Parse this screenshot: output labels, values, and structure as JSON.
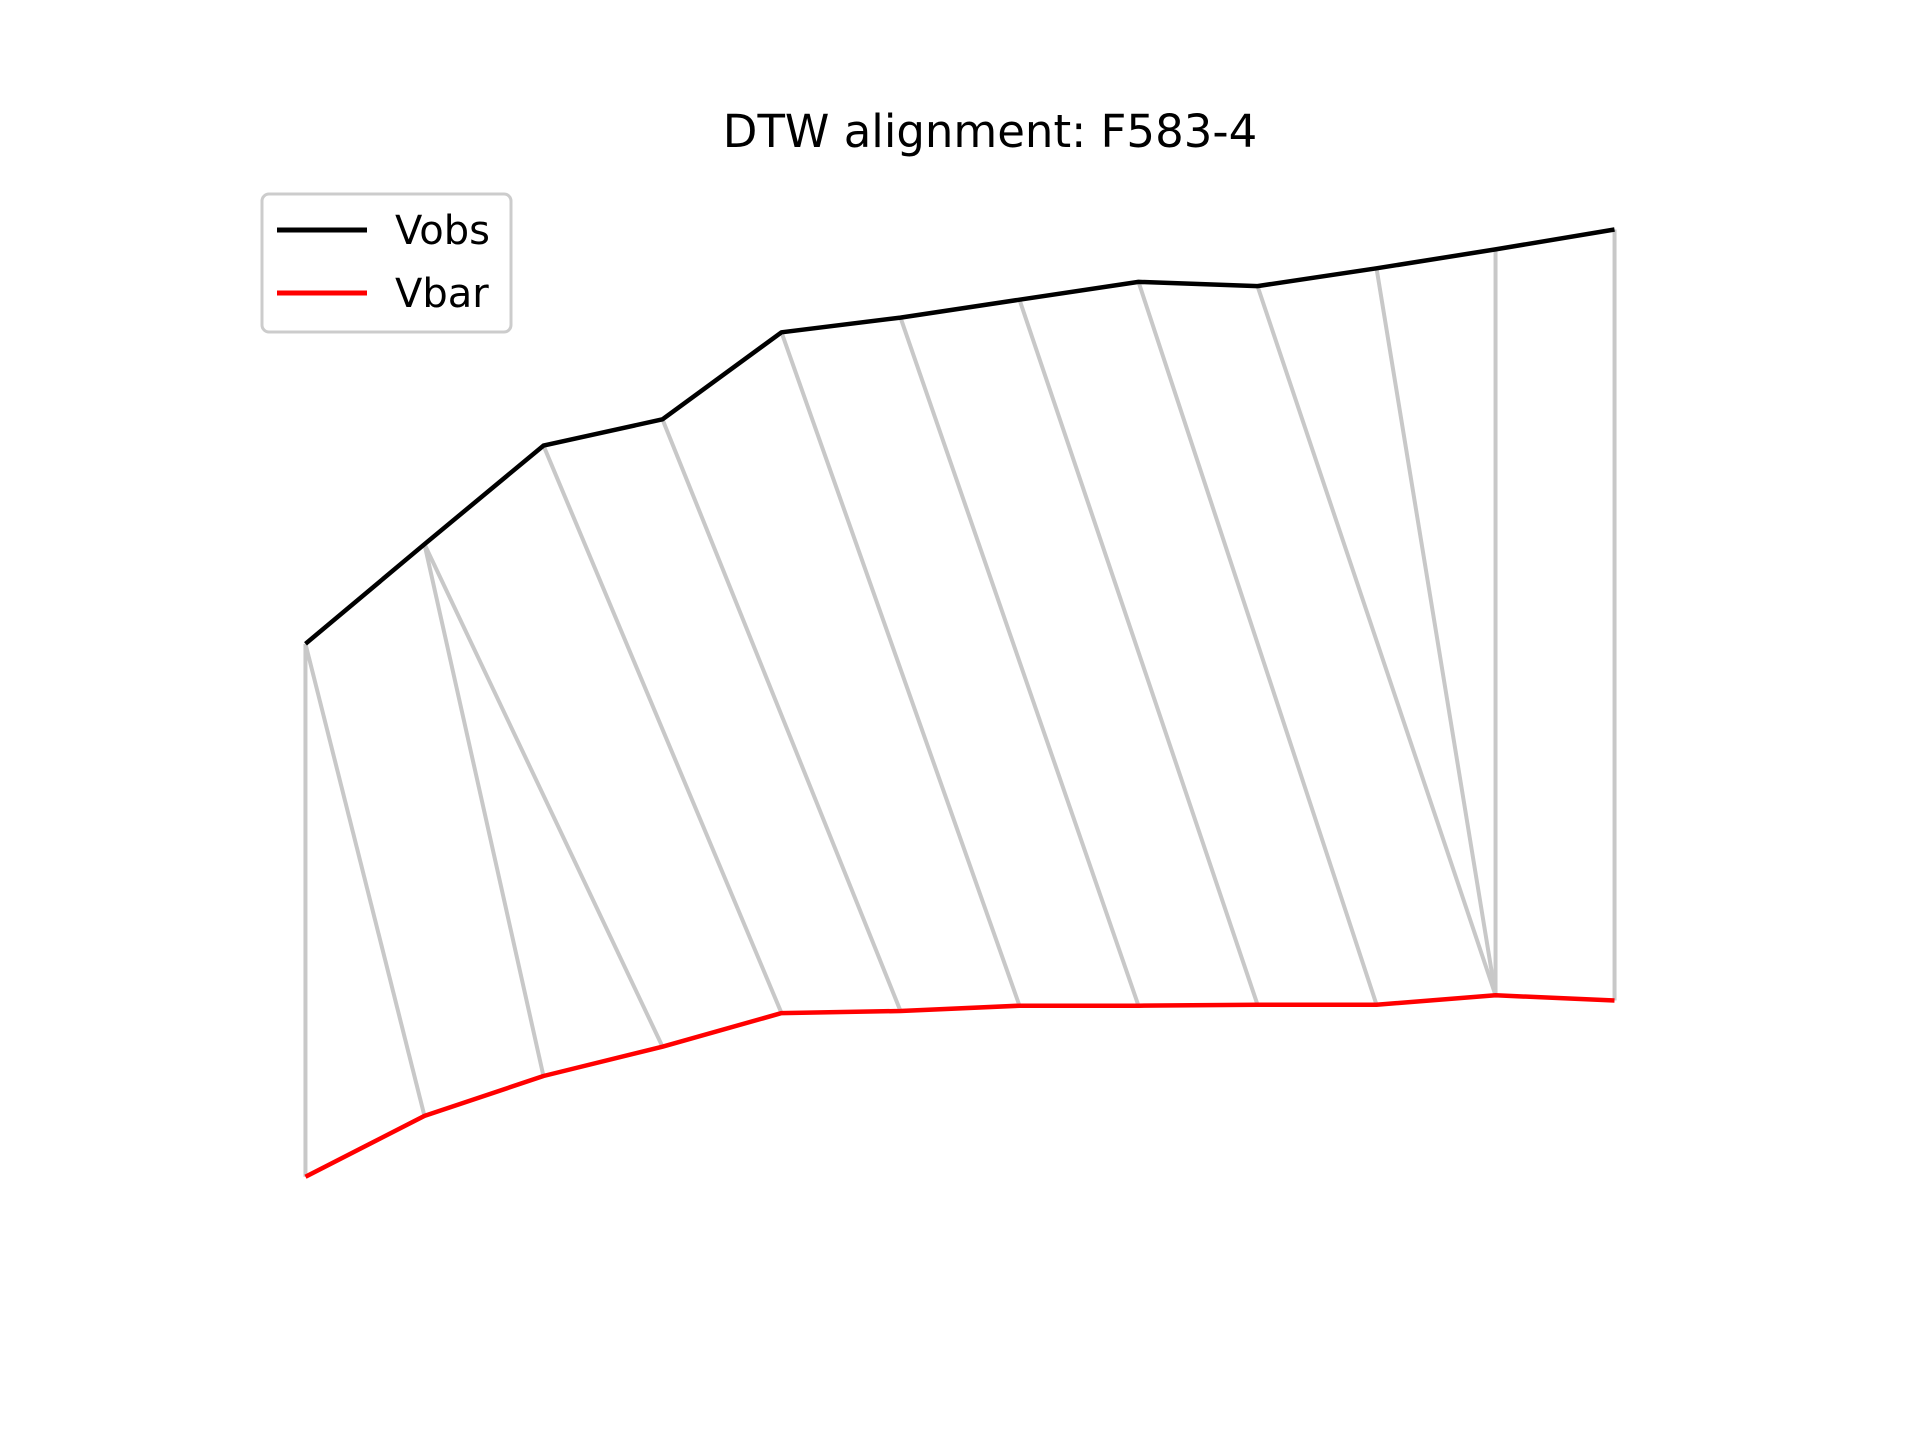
{
  "chart_data": {
    "type": "line",
    "title": "DTW alignment: F583-4",
    "xlabel": "",
    "ylabel": "",
    "axes_visible": false,
    "grid": false,
    "legend_position": "top-left",
    "x": [
      0,
      1,
      2,
      3,
      4,
      5,
      6,
      7,
      8,
      9,
      10,
      11
    ],
    "series": [
      {
        "name": "Vobs",
        "color": "#000000",
        "values": [
          0.0,
          0.95,
          1.89,
          2.14,
          2.97,
          3.11,
          3.28,
          3.45,
          3.41,
          3.58,
          3.76,
          3.95
        ]
      },
      {
        "name": "Vbar",
        "color": "#ff0000",
        "values": [
          -5.08,
          -4.5,
          -4.12,
          -3.84,
          -3.52,
          -3.5,
          -3.45,
          -3.45,
          -3.44,
          -3.44,
          -3.35,
          -3.4
        ]
      }
    ],
    "alignment_pairs": [
      [
        0,
        0
      ],
      [
        0,
        1
      ],
      [
        1,
        2
      ],
      [
        1,
        3
      ],
      [
        2,
        4
      ],
      [
        3,
        5
      ],
      [
        4,
        6
      ],
      [
        5,
        7
      ],
      [
        6,
        8
      ],
      [
        7,
        9
      ],
      [
        8,
        10
      ],
      [
        9,
        10
      ],
      [
        10,
        10
      ],
      [
        11,
        11
      ]
    ],
    "alignment_color": "#c8c8c8",
    "ylim": [
      -5.95,
      4.45
    ]
  }
}
